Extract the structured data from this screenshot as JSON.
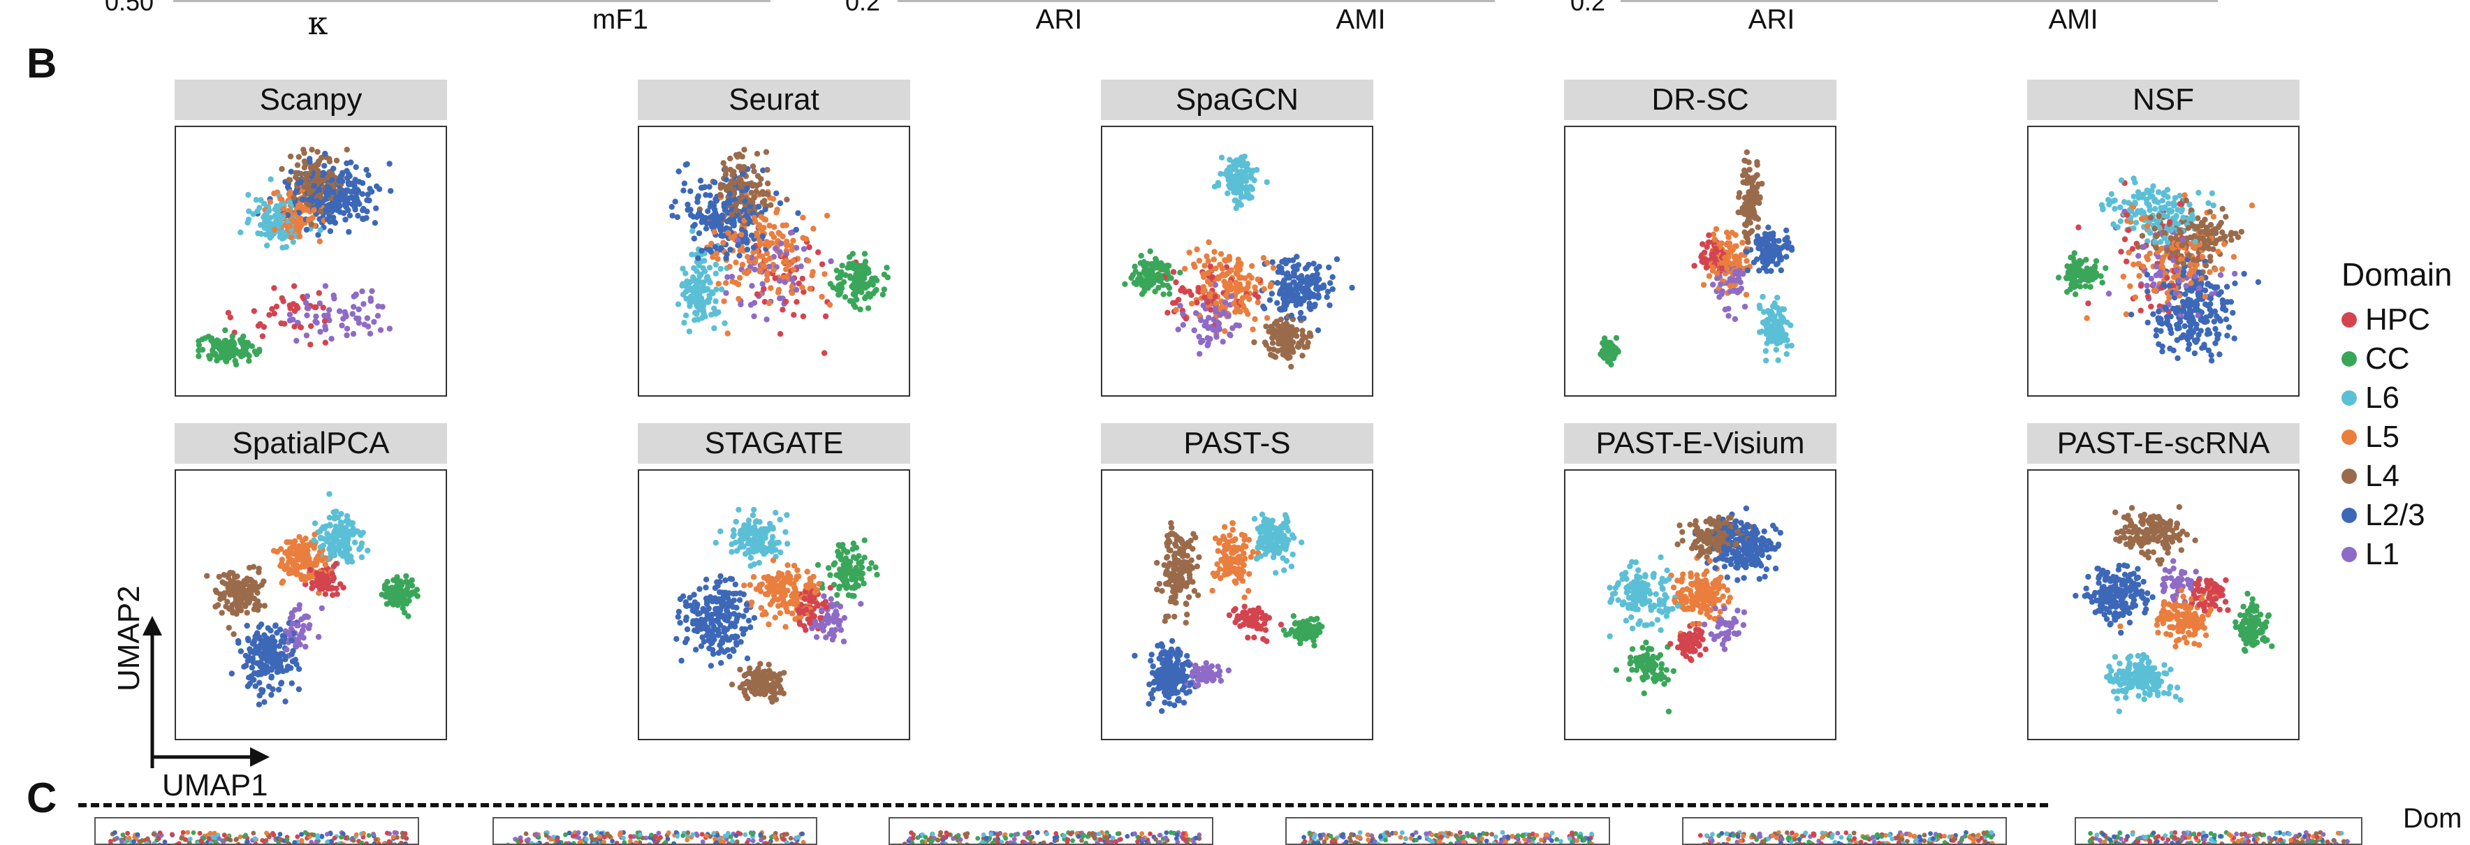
{
  "top_strip": {
    "tick_values": [
      "0.50",
      "0.2",
      "0.2"
    ],
    "axis_labels": [
      "κ",
      "mF1",
      "ARI",
      "AMI",
      "ARI",
      "AMI"
    ]
  },
  "panel_letters": {
    "b": "B",
    "c": "C"
  },
  "umap_axes": {
    "x": "UMAP1",
    "y": "UMAP2"
  },
  "legend": {
    "title": "Domain",
    "items": [
      {
        "label": "HPC",
        "color": "#d3444f"
      },
      {
        "label": "CC",
        "color": "#3aa65a"
      },
      {
        "label": "L6",
        "color": "#5bbfd6"
      },
      {
        "label": "L5",
        "color": "#e97e3e"
      },
      {
        "label": "L4",
        "color": "#9a6b4b"
      },
      {
        "label": "L2/3",
        "color": "#3d68b8"
      },
      {
        "label": "L1",
        "color": "#8e6bc6"
      }
    ]
  },
  "bottom_cut": {
    "legend_fragment": "Dom"
  },
  "chart_data": {
    "type": "scatter",
    "title": "",
    "xlabel": "UMAP1",
    "ylabel": "UMAP2",
    "grid": false,
    "legend_position": "right",
    "panels": [
      {
        "method": "Scanpy",
        "clusters": [
          {
            "domain": "L2/3",
            "center": [
              0.58,
              0.22
            ],
            "spread": [
              0.16,
              0.12
            ],
            "n": 260
          },
          {
            "domain": "L4",
            "center": [
              0.52,
              0.16
            ],
            "spread": [
              0.1,
              0.1
            ],
            "n": 160
          },
          {
            "domain": "L6",
            "center": [
              0.36,
              0.33
            ],
            "spread": [
              0.1,
              0.08
            ],
            "n": 120
          },
          {
            "domain": "L5",
            "center": [
              0.42,
              0.3
            ],
            "spread": [
              0.1,
              0.1
            ],
            "n": 110
          },
          {
            "domain": "CC",
            "center": [
              0.15,
              0.86
            ],
            "spread": [
              0.1,
              0.05
            ],
            "n": 120
          },
          {
            "domain": "L1",
            "center": [
              0.6,
              0.72
            ],
            "spread": [
              0.18,
              0.1
            ],
            "n": 60
          },
          {
            "domain": "HPC",
            "center": [
              0.4,
              0.7
            ],
            "spread": [
              0.2,
              0.12
            ],
            "n": 40
          }
        ]
      },
      {
        "method": "Seurat",
        "clusters": [
          {
            "domain": "L2/3",
            "center": [
              0.3,
              0.3
            ],
            "spread": [
              0.16,
              0.16
            ],
            "n": 200
          },
          {
            "domain": "L4",
            "center": [
              0.36,
              0.2
            ],
            "spread": [
              0.1,
              0.12
            ],
            "n": 120
          },
          {
            "domain": "L6",
            "center": [
              0.18,
              0.6
            ],
            "spread": [
              0.08,
              0.14
            ],
            "n": 120
          },
          {
            "domain": "L5",
            "center": [
              0.45,
              0.45
            ],
            "spread": [
              0.2,
              0.2
            ],
            "n": 150
          },
          {
            "domain": "CC",
            "center": [
              0.84,
              0.58
            ],
            "spread": [
              0.08,
              0.08
            ],
            "n": 110
          },
          {
            "domain": "L1",
            "center": [
              0.5,
              0.55
            ],
            "spread": [
              0.2,
              0.2
            ],
            "n": 50
          },
          {
            "domain": "HPC",
            "center": [
              0.55,
              0.6
            ],
            "spread": [
              0.2,
              0.2
            ],
            "n": 40
          }
        ]
      },
      {
        "method": "SpaGCN",
        "clusters": [
          {
            "domain": "L6",
            "center": [
              0.5,
              0.15
            ],
            "spread": [
              0.06,
              0.08
            ],
            "n": 120
          },
          {
            "domain": "L2/3",
            "center": [
              0.75,
              0.6
            ],
            "spread": [
              0.12,
              0.1
            ],
            "n": 180
          },
          {
            "domain": "L4",
            "center": [
              0.7,
              0.82
            ],
            "spread": [
              0.08,
              0.08
            ],
            "n": 110
          },
          {
            "domain": "CC",
            "center": [
              0.15,
              0.55
            ],
            "spread": [
              0.08,
              0.06
            ],
            "n": 100
          },
          {
            "domain": "L5",
            "center": [
              0.45,
              0.6
            ],
            "spread": [
              0.16,
              0.14
            ],
            "n": 150
          },
          {
            "domain": "L1",
            "center": [
              0.4,
              0.75
            ],
            "spread": [
              0.1,
              0.1
            ],
            "n": 60
          },
          {
            "domain": "HPC",
            "center": [
              0.35,
              0.65
            ],
            "spread": [
              0.16,
              0.12
            ],
            "n": 50
          }
        ]
      },
      {
        "method": "DR-SC",
        "clusters": [
          {
            "domain": "L4",
            "center": [
              0.7,
              0.22
            ],
            "spread": [
              0.04,
              0.14
            ],
            "n": 120
          },
          {
            "domain": "L2/3",
            "center": [
              0.78,
              0.45
            ],
            "spread": [
              0.06,
              0.06
            ],
            "n": 120
          },
          {
            "domain": "L6",
            "center": [
              0.8,
              0.77
            ],
            "spread": [
              0.05,
              0.09
            ],
            "n": 120
          },
          {
            "domain": "L5",
            "center": [
              0.6,
              0.5
            ],
            "spread": [
              0.08,
              0.1
            ],
            "n": 100
          },
          {
            "domain": "HPC",
            "center": [
              0.55,
              0.48
            ],
            "spread": [
              0.06,
              0.08
            ],
            "n": 60
          },
          {
            "domain": "CC",
            "center": [
              0.12,
              0.87
            ],
            "spread": [
              0.03,
              0.04
            ],
            "n": 60
          },
          {
            "domain": "L1",
            "center": [
              0.62,
              0.6
            ],
            "spread": [
              0.06,
              0.1
            ],
            "n": 40
          }
        ]
      },
      {
        "method": "NSF",
        "clusters": [
          {
            "domain": "L2/3",
            "center": [
              0.62,
              0.7
            ],
            "spread": [
              0.16,
              0.16
            ],
            "n": 220
          },
          {
            "domain": "L6",
            "center": [
              0.45,
              0.28
            ],
            "spread": [
              0.16,
              0.12
            ],
            "n": 150
          },
          {
            "domain": "L4",
            "center": [
              0.62,
              0.4
            ],
            "spread": [
              0.16,
              0.12
            ],
            "n": 140
          },
          {
            "domain": "L5",
            "center": [
              0.55,
              0.5
            ],
            "spread": [
              0.2,
              0.2
            ],
            "n": 120
          },
          {
            "domain": "CC",
            "center": [
              0.15,
              0.55
            ],
            "spread": [
              0.07,
              0.06
            ],
            "n": 90
          },
          {
            "domain": "L1",
            "center": [
              0.5,
              0.55
            ],
            "spread": [
              0.2,
              0.2
            ],
            "n": 50
          },
          {
            "domain": "HPC",
            "center": [
              0.45,
              0.5
            ],
            "spread": [
              0.2,
              0.2
            ],
            "n": 40
          }
        ]
      },
      {
        "method": "SpatialPCA",
        "clusters": [
          {
            "domain": "L6",
            "center": [
              0.62,
              0.22
            ],
            "spread": [
              0.08,
              0.1
            ],
            "n": 130
          },
          {
            "domain": "L5",
            "center": [
              0.45,
              0.3
            ],
            "spread": [
              0.1,
              0.08
            ],
            "n": 130
          },
          {
            "domain": "L4",
            "center": [
              0.2,
              0.45
            ],
            "spread": [
              0.08,
              0.08
            ],
            "n": 150
          },
          {
            "domain": "HPC",
            "center": [
              0.55,
              0.4
            ],
            "spread": [
              0.06,
              0.06
            ],
            "n": 60
          },
          {
            "domain": "CC",
            "center": [
              0.86,
              0.45
            ],
            "spread": [
              0.06,
              0.06
            ],
            "n": 90
          },
          {
            "domain": "L2/3",
            "center": [
              0.32,
              0.72
            ],
            "spread": [
              0.1,
              0.12
            ],
            "n": 200
          },
          {
            "domain": "L1",
            "center": [
              0.45,
              0.6
            ],
            "spread": [
              0.06,
              0.08
            ],
            "n": 50
          }
        ]
      },
      {
        "method": "STAGATE",
        "clusters": [
          {
            "domain": "L6",
            "center": [
              0.42,
              0.22
            ],
            "spread": [
              0.1,
              0.08
            ],
            "n": 130
          },
          {
            "domain": "CC",
            "center": [
              0.8,
              0.35
            ],
            "spread": [
              0.08,
              0.1
            ],
            "n": 110
          },
          {
            "domain": "L2/3",
            "center": [
              0.25,
              0.55
            ],
            "spread": [
              0.12,
              0.14
            ],
            "n": 200
          },
          {
            "domain": "L5",
            "center": [
              0.55,
              0.45
            ],
            "spread": [
              0.12,
              0.1
            ],
            "n": 150
          },
          {
            "domain": "HPC",
            "center": [
              0.65,
              0.5
            ],
            "spread": [
              0.06,
              0.08
            ],
            "n": 60
          },
          {
            "domain": "L4",
            "center": [
              0.45,
              0.82
            ],
            "spread": [
              0.08,
              0.06
            ],
            "n": 120
          },
          {
            "domain": "L1",
            "center": [
              0.72,
              0.55
            ],
            "spread": [
              0.08,
              0.08
            ],
            "n": 50
          }
        ]
      },
      {
        "method": "PAST-S",
        "clusters": [
          {
            "domain": "L4",
            "center": [
              0.25,
              0.35
            ],
            "spread": [
              0.06,
              0.14
            ],
            "n": 150
          },
          {
            "domain": "L6",
            "center": [
              0.65,
              0.22
            ],
            "spread": [
              0.08,
              0.1
            ],
            "n": 130
          },
          {
            "domain": "L5",
            "center": [
              0.48,
              0.3
            ],
            "spread": [
              0.08,
              0.1
            ],
            "n": 110
          },
          {
            "domain": "HPC",
            "center": [
              0.55,
              0.55
            ],
            "spread": [
              0.06,
              0.06
            ],
            "n": 60
          },
          {
            "domain": "CC",
            "center": [
              0.78,
              0.6
            ],
            "spread": [
              0.06,
              0.04
            ],
            "n": 80
          },
          {
            "domain": "L2/3",
            "center": [
              0.22,
              0.8
            ],
            "spread": [
              0.08,
              0.1
            ],
            "n": 180
          },
          {
            "domain": "L1",
            "center": [
              0.35,
              0.78
            ],
            "spread": [
              0.06,
              0.04
            ],
            "n": 50
          }
        ]
      },
      {
        "method": "PAST-E-Visium",
        "clusters": [
          {
            "domain": "L2/3",
            "center": [
              0.68,
              0.25
            ],
            "spread": [
              0.12,
              0.1
            ],
            "n": 180
          },
          {
            "domain": "L4",
            "center": [
              0.55,
              0.22
            ],
            "spread": [
              0.1,
              0.08
            ],
            "n": 130
          },
          {
            "domain": "L5",
            "center": [
              0.5,
              0.45
            ],
            "spread": [
              0.1,
              0.1
            ],
            "n": 140
          },
          {
            "domain": "L6",
            "center": [
              0.25,
              0.45
            ],
            "spread": [
              0.1,
              0.1
            ],
            "n": 140
          },
          {
            "domain": "HPC",
            "center": [
              0.45,
              0.65
            ],
            "spread": [
              0.06,
              0.06
            ],
            "n": 60
          },
          {
            "domain": "CC",
            "center": [
              0.28,
              0.75
            ],
            "spread": [
              0.08,
              0.08
            ],
            "n": 80
          },
          {
            "domain": "L1",
            "center": [
              0.6,
              0.6
            ],
            "spread": [
              0.06,
              0.06
            ],
            "n": 40
          }
        ]
      },
      {
        "method": "PAST-E-scRNA",
        "clusters": [
          {
            "domain": "L4",
            "center": [
              0.45,
              0.2
            ],
            "spread": [
              0.12,
              0.08
            ],
            "n": 150
          },
          {
            "domain": "L2/3",
            "center": [
              0.3,
              0.45
            ],
            "spread": [
              0.12,
              0.1
            ],
            "n": 180
          },
          {
            "domain": "L5",
            "center": [
              0.58,
              0.55
            ],
            "spread": [
              0.1,
              0.08
            ],
            "n": 120
          },
          {
            "domain": "HPC",
            "center": [
              0.68,
              0.45
            ],
            "spread": [
              0.06,
              0.06
            ],
            "n": 60
          },
          {
            "domain": "CC",
            "center": [
              0.86,
              0.58
            ],
            "spread": [
              0.06,
              0.08
            ],
            "n": 90
          },
          {
            "domain": "L6",
            "center": [
              0.4,
              0.8
            ],
            "spread": [
              0.12,
              0.08
            ],
            "n": 150
          },
          {
            "domain": "L1",
            "center": [
              0.55,
              0.4
            ],
            "spread": [
              0.06,
              0.06
            ],
            "n": 40
          }
        ]
      }
    ]
  }
}
